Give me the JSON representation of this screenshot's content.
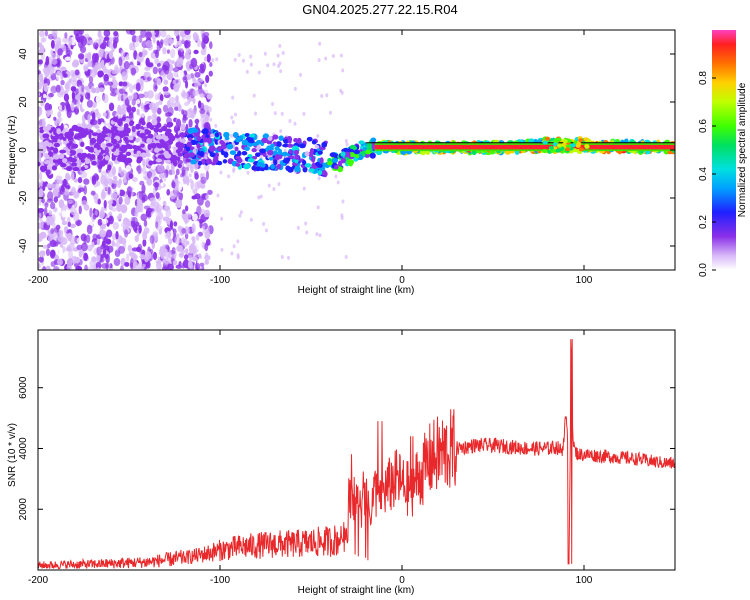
{
  "title": "GN04.2025.277.22.15.R04",
  "colors": {
    "snr_line": "#e8282a",
    "spectrogram_low": "#7a20e8",
    "spectrogram_high": "#ff2030",
    "frame": "#000000"
  },
  "chart_data": [
    {
      "type": "heatmap",
      "name": "spectrogram",
      "xlabel": "Height of straight line (km)",
      "ylabel": "Frequency (Hz)",
      "xlim": [
        -200,
        150
      ],
      "ylim": [
        -50,
        50
      ],
      "xticks": [
        -200,
        -100,
        0,
        100
      ],
      "yticks": [
        -40,
        -20,
        0,
        20,
        40
      ],
      "colorbar": {
        "label": "Normalized spectral amplitude",
        "range": [
          0,
          1
        ],
        "ticks": [
          "0.0",
          "0.2",
          "0.4",
          "0.6",
          "0.8"
        ],
        "tick_values": [
          0.0,
          0.2,
          0.4,
          0.6,
          0.8
        ]
      },
      "band_center_hz": [
        {
          "x": -160,
          "y": 5
        },
        {
          "x": -120,
          "y": 2
        },
        {
          "x": -80,
          "y": -1
        },
        {
          "x": -50,
          "y": -2
        },
        {
          "x": -35,
          "y": -5
        },
        {
          "x": -20,
          "y": 1
        },
        {
          "x": 0,
          "y": 1
        },
        {
          "x": 50,
          "y": 1
        },
        {
          "x": 90,
          "y": 2
        },
        {
          "x": 150,
          "y": 1
        }
      ]
    },
    {
      "type": "line",
      "name": "snr",
      "xlabel": "Height of straight line (km)",
      "ylabel": "SNR (10 * v/v)",
      "xlim": [
        -200,
        150
      ],
      "ylim": [
        0,
        7900
      ],
      "xticks": [
        -200,
        -100,
        0,
        100
      ],
      "yticks": [
        2000,
        4000,
        6000
      ],
      "series": [
        {
          "name": "SNR",
          "x": [
            -200,
            -180,
            -160,
            -140,
            -120,
            -110,
            -100,
            -90,
            -80,
            -70,
            -60,
            -50,
            -40,
            -35,
            -30,
            -28,
            -25,
            -22,
            -20,
            -18,
            -15,
            -12,
            -10,
            -8,
            -5,
            -2,
            0,
            5,
            8,
            10,
            12,
            15,
            20,
            25,
            30,
            35,
            40,
            45,
            50,
            60,
            70,
            80,
            85,
            88,
            90,
            91,
            92,
            93,
            94,
            95,
            97,
            100,
            110,
            120,
            130,
            140,
            150
          ],
          "y": [
            150,
            180,
            210,
            260,
            400,
            500,
            650,
            750,
            800,
            850,
            850,
            900,
            950,
            1000,
            1300,
            2800,
            2200,
            2000,
            2400,
            1800,
            2600,
            2500,
            2600,
            2700,
            2900,
            3000,
            2800,
            2600,
            3000,
            3100,
            3300,
            3600,
            3800,
            3900,
            4000,
            4050,
            4100,
            4100,
            4100,
            4050,
            4000,
            4000,
            4050,
            3900,
            5000,
            4200,
            1500,
            7100,
            4300,
            3900,
            3800,
            3800,
            3750,
            3700,
            3650,
            3550,
            3500
          ]
        }
      ]
    }
  ]
}
